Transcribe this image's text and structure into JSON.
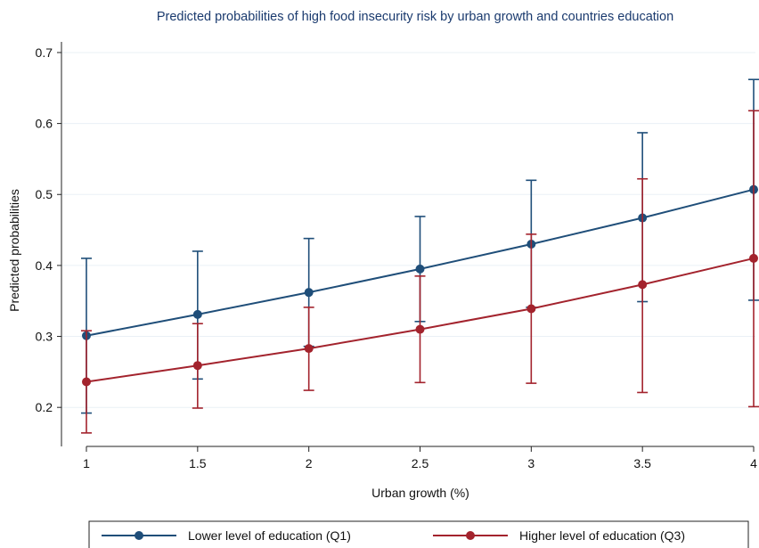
{
  "chart_data": {
    "type": "line",
    "title": "Predicted probabilities of high food insecurity risk by urban growth and countries education",
    "xlabel": "Urban growth (%)",
    "ylabel": "Predicted probabilities",
    "x": [
      1,
      1.5,
      2,
      2.5,
      3,
      3.5,
      4
    ],
    "x_tick_labels": [
      "1",
      "1.5",
      "2",
      "2.5",
      "3",
      "3.5",
      "4"
    ],
    "y_tick_labels": [
      "0.2",
      "0.3",
      "0.4",
      "0.5",
      "0.6",
      "0.7"
    ],
    "y_ticks": [
      0.2,
      0.3,
      0.4,
      0.5,
      0.6,
      0.7
    ],
    "xlim": [
      1,
      4
    ],
    "ylim": [
      0.145,
      0.715
    ],
    "grid": true,
    "legend_position": "bottom",
    "series": [
      {
        "name": "Lower level of education (Q1)",
        "color": "#1f4e79",
        "values": [
          0.301,
          0.331,
          0.362,
          0.395,
          0.43,
          0.467,
          0.507
        ],
        "ci_lower": [
          0.192,
          0.24,
          0.286,
          0.321,
          0.341,
          0.349,
          0.351
        ],
        "ci_upper": [
          0.41,
          0.42,
          0.438,
          0.469,
          0.52,
          0.587,
          0.662
        ]
      },
      {
        "name": "Higher level of education (Q3)",
        "color": "#a3232d",
        "values": [
          0.236,
          0.259,
          0.283,
          0.31,
          0.339,
          0.373,
          0.41
        ],
        "ci_lower": [
          0.164,
          0.199,
          0.224,
          0.235,
          0.234,
          0.221,
          0.201
        ],
        "ci_upper": [
          0.308,
          0.318,
          0.341,
          0.385,
          0.444,
          0.522,
          0.618
        ]
      }
    ]
  }
}
